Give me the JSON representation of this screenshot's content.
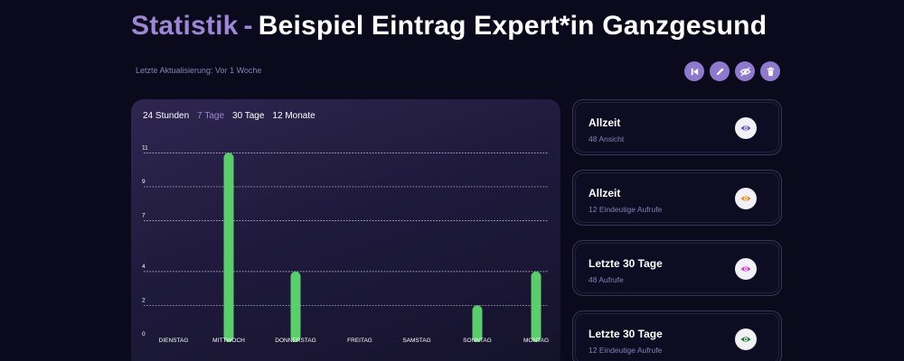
{
  "header": {
    "title_accent": "Statistik",
    "title_dash": "-",
    "title_main": "Beispiel Eintrag Expert*in Ganzgesund",
    "last_updated": "Letzte Aktualisierung: Vor 1 Woche"
  },
  "actions": [
    {
      "icon": "skip-back-icon"
    },
    {
      "icon": "pencil-icon"
    },
    {
      "icon": "eye-off-icon"
    },
    {
      "icon": "trash-icon"
    }
  ],
  "tabs": [
    {
      "label": "24 Stunden",
      "active": false
    },
    {
      "label": "7 Tage",
      "active": true
    },
    {
      "label": "30 Tage",
      "active": false
    },
    {
      "label": "12 Monate",
      "active": false
    }
  ],
  "chart_data": {
    "type": "bar",
    "categories": [
      "DIENSTAG",
      "MITTWOCH",
      "DONNERSTAG",
      "FREITAG",
      "SAMSTAG",
      "SONNTAG",
      "MONTAG"
    ],
    "values": [
      0,
      11,
      4,
      0,
      0,
      2,
      4
    ],
    "y_ticks": [
      0,
      2,
      4,
      7,
      9,
      11
    ],
    "ylim": [
      0,
      11.5
    ],
    "grid": true,
    "bar_color": "#5ccd6d"
  },
  "stats": [
    {
      "title": "Allzeit",
      "sub": "48 Ansicht",
      "icon_color": "#6a4fd1",
      "icon": "eye-icon"
    },
    {
      "title": "Allzeit",
      "sub": "12 Eindeutige Aufrufe",
      "icon_color": "#f08a1c",
      "icon": "eye-icon"
    },
    {
      "title": "Letzte 30 Tage",
      "sub": "48 Aufrufe",
      "icon_color": "#d63ad1",
      "icon": "eye-icon"
    },
    {
      "title": "Letzte 30 Tage",
      "sub": "12 Eindeutige Aufrufe",
      "icon_color": "#1f7d3a",
      "icon": "eye-icon"
    }
  ]
}
